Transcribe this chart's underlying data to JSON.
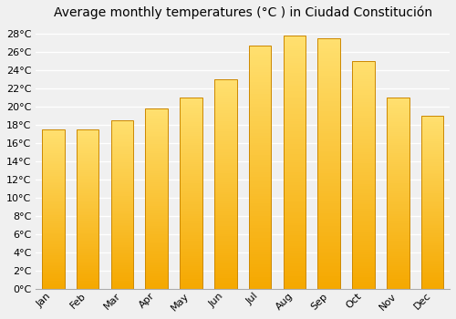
{
  "title": "Average monthly temperatures (°C ) in Ciudad Constitución",
  "months": [
    "Jan",
    "Feb",
    "Mar",
    "Apr",
    "May",
    "Jun",
    "Jul",
    "Aug",
    "Sep",
    "Oct",
    "Nov",
    "Dec"
  ],
  "values": [
    17.5,
    17.5,
    18.5,
    19.8,
    21.0,
    23.0,
    26.7,
    27.8,
    27.5,
    25.0,
    21.0,
    19.0
  ],
  "gradient_bottom_color": "#F5A800",
  "gradient_top_color": "#FFE070",
  "bar_edge_color": "#CC8800",
  "background_color": "#f0f0f0",
  "grid_color": "#ffffff",
  "ylim": [
    0,
    29
  ],
  "yticks": [
    0,
    2,
    4,
    6,
    8,
    10,
    12,
    14,
    16,
    18,
    20,
    22,
    24,
    26,
    28
  ],
  "ytick_labels": [
    "0°C",
    "2°C",
    "4°C",
    "6°C",
    "8°C",
    "10°C",
    "12°C",
    "14°C",
    "16°C",
    "18°C",
    "20°C",
    "22°C",
    "24°C",
    "26°C",
    "28°C"
  ],
  "title_fontsize": 10,
  "tick_fontsize": 8,
  "figsize": [
    5.0,
    3.5
  ],
  "dpi": 100,
  "bar_width": 0.65,
  "gradient_steps": 100
}
